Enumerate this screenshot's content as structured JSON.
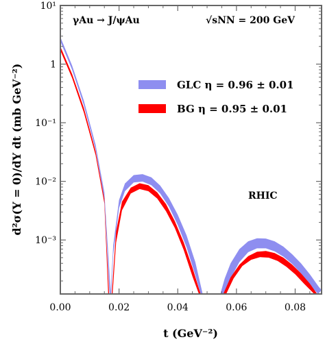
{
  "chart_data": {
    "type": "area",
    "title": "",
    "xlabel": "t (GeV⁻²)",
    "ylabel": "d²σ(Y = 0)/dY dt (mb GeV⁻²)",
    "xlim": [
      0,
      0.089
    ],
    "ylim": [
      0.00012,
      10
    ],
    "yscale": "log",
    "x_ticks": [
      {
        "value": 0.0,
        "label": "0.00"
      },
      {
        "value": 0.02,
        "label": "0.02"
      },
      {
        "value": 0.04,
        "label": "0.04"
      },
      {
        "value": 0.06,
        "label": "0.06"
      },
      {
        "value": 0.08,
        "label": "0.08"
      }
    ],
    "y_ticks": [
      {
        "value": 10,
        "label": "10¹"
      },
      {
        "value": 1,
        "label": "1"
      },
      {
        "value": 0.1,
        "label": "10⁻¹"
      },
      {
        "value": 0.01,
        "label": "10⁻²"
      },
      {
        "value": 0.001,
        "label": "10⁻³"
      }
    ],
    "annotations": {
      "process": "γAu → J/ψAu",
      "energy": "√sNN = 200 GeV",
      "collider": "RHIC"
    },
    "legend_position": "top-right",
    "series": [
      {
        "name": "GLC",
        "legend_label": "GLC η = 0.96 ± 0.01",
        "color": "#8e8ef0",
        "lobes": [
          {
            "lower": [
              [
                0.0,
                2.45
              ],
              [
                0.004,
                0.8
              ],
              [
                0.008,
                0.2
              ],
              [
                0.012,
                0.035
              ],
              [
                0.015,
                0.005
              ],
              [
                0.0168,
                0.00012
              ]
            ],
            "upper": [
              [
                0.0,
                2.9
              ],
              [
                0.004,
                0.95
              ],
              [
                0.008,
                0.24
              ],
              [
                0.012,
                0.042
              ],
              [
                0.015,
                0.0065
              ],
              [
                0.0172,
                0.00012
              ]
            ]
          },
          {
            "lower": [
              [
                0.0173,
                0.00012
              ],
              [
                0.018,
                0.00055
              ],
              [
                0.02,
                0.0035
              ],
              [
                0.022,
                0.0068
              ],
              [
                0.025,
                0.0096
              ],
              [
                0.028,
                0.0099
              ],
              [
                0.031,
                0.0086
              ],
              [
                0.034,
                0.0062
              ],
              [
                0.037,
                0.0037
              ],
              [
                0.04,
                0.0018
              ],
              [
                0.043,
                0.00075
              ],
              [
                0.046,
                0.00025
              ],
              [
                0.0478,
                0.00012
              ]
            ],
            "upper": [
              [
                0.0171,
                0.00012
              ],
              [
                0.018,
                0.0008
              ],
              [
                0.02,
                0.0048
              ],
              [
                0.022,
                0.0092
              ],
              [
                0.025,
                0.0128
              ],
              [
                0.028,
                0.0133
              ],
              [
                0.031,
                0.0117
              ],
              [
                0.034,
                0.0085
              ],
              [
                0.037,
                0.0052
              ],
              [
                0.04,
                0.0027
              ],
              [
                0.043,
                0.0012
              ],
              [
                0.046,
                0.00042
              ],
              [
                0.0485,
                0.00012
              ]
            ]
          },
          {
            "lower": [
              [
                0.0558,
                0.00012
              ],
              [
                0.058,
                0.00022
              ],
              [
                0.061,
                0.00042
              ],
              [
                0.064,
                0.00062
              ],
              [
                0.067,
                0.00072
              ],
              [
                0.07,
                0.00072
              ],
              [
                0.073,
                0.00064
              ],
              [
                0.076,
                0.00052
              ],
              [
                0.079,
                0.00039
              ],
              [
                0.082,
                0.00027
              ],
              [
                0.085,
                0.00017
              ],
              [
                0.0878,
                0.00012
              ]
            ],
            "upper": [
              [
                0.0545,
                0.00012
              ],
              [
                0.056,
                0.00022
              ],
              [
                0.058,
                0.0004
              ],
              [
                0.061,
                0.0007
              ],
              [
                0.064,
                0.00095
              ],
              [
                0.067,
                0.00107
              ],
              [
                0.07,
                0.00106
              ],
              [
                0.073,
                0.00095
              ],
              [
                0.076,
                0.00077
              ],
              [
                0.079,
                0.00057
              ],
              [
                0.082,
                0.0004
              ],
              [
                0.085,
                0.00026
              ],
              [
                0.088,
                0.00016
              ],
              [
                0.089,
                0.00014
              ]
            ]
          }
        ]
      },
      {
        "name": "BG",
        "legend_label": "BG η = 0.95 ± 0.01",
        "color": "#ff0000",
        "lobes": [
          {
            "lower": [
              [
                0.0,
                1.7
              ],
              [
                0.004,
                0.58
              ],
              [
                0.008,
                0.15
              ],
              [
                0.012,
                0.028
              ],
              [
                0.015,
                0.0042
              ],
              [
                0.0163,
                0.00012
              ]
            ],
            "upper": [
              [
                0.0,
                2.0
              ],
              [
                0.004,
                0.68
              ],
              [
                0.008,
                0.18
              ],
              [
                0.012,
                0.033
              ],
              [
                0.015,
                0.005
              ],
              [
                0.0166,
                0.00012
              ]
            ]
          },
          {
            "lower": [
              [
                0.0178,
                0.00012
              ],
              [
                0.019,
                0.0009
              ],
              [
                0.021,
                0.0032
              ],
              [
                0.024,
                0.0062
              ],
              [
                0.027,
                0.0074
              ],
              [
                0.03,
                0.0068
              ],
              [
                0.033,
                0.0051
              ],
              [
                0.036,
                0.0031
              ],
              [
                0.039,
                0.0016
              ],
              [
                0.042,
                0.00068
              ],
              [
                0.045,
                0.00024
              ],
              [
                0.0472,
                0.00012
              ]
            ],
            "upper": [
              [
                0.0175,
                0.00012
              ],
              [
                0.019,
                0.0014
              ],
              [
                0.021,
                0.0045
              ],
              [
                0.024,
                0.0078
              ],
              [
                0.027,
                0.0093
              ],
              [
                0.03,
                0.0086
              ],
              [
                0.033,
                0.0065
              ],
              [
                0.036,
                0.0041
              ],
              [
                0.039,
                0.0021
              ],
              [
                0.042,
                0.00092
              ],
              [
                0.045,
                0.00034
              ],
              [
                0.0478,
                0.00012
              ]
            ]
          },
          {
            "lower": [
              [
                0.0565,
                0.00012
              ],
              [
                0.059,
                0.00022
              ],
              [
                0.062,
                0.00036
              ],
              [
                0.065,
                0.00046
              ],
              [
                0.068,
                0.00051
              ],
              [
                0.071,
                0.0005
              ],
              [
                0.074,
                0.00044
              ],
              [
                0.077,
                0.00035
              ],
              [
                0.08,
                0.00026
              ],
              [
                0.083,
                0.00018
              ],
              [
                0.0865,
                0.00012
              ]
            ],
            "upper": [
              [
                0.0555,
                0.00012
              ],
              [
                0.058,
                0.00023
              ],
              [
                0.061,
                0.00038
              ],
              [
                0.064,
                0.00053
              ],
              [
                0.067,
                0.00063
              ],
              [
                0.07,
                0.00065
              ],
              [
                0.073,
                0.0006
              ],
              [
                0.076,
                0.0005
              ],
              [
                0.079,
                0.00038
              ],
              [
                0.082,
                0.00027
              ],
              [
                0.085,
                0.00018
              ],
              [
                0.0875,
                0.00012
              ]
            ]
          }
        ]
      }
    ]
  }
}
